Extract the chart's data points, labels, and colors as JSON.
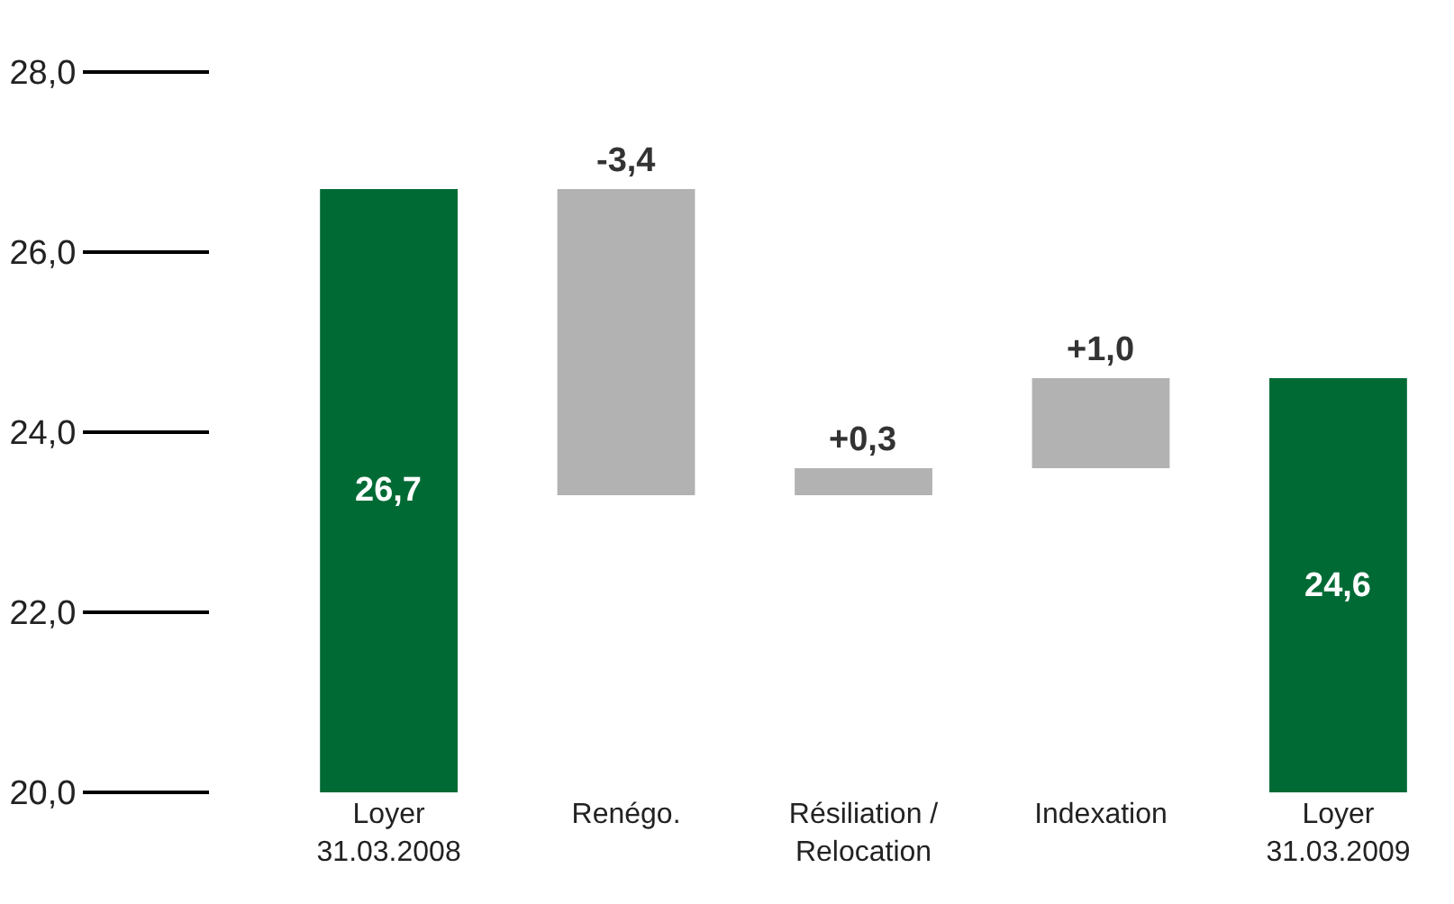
{
  "chart_data": {
    "type": "bar",
    "categories": [
      "Loyer 31.03.2008",
      "Renégo.",
      "Résiliation / Relocation",
      "Indexation",
      "Loyer 31.03.2009"
    ],
    "values": [
      6.7,
      -3.4,
      0.3,
      1.0,
      4.6
    ],
    "base": [
      20,
      26.7,
      23.3,
      23.6,
      20
    ],
    "colors": [
      "#006a35",
      "#b2b2b2",
      "#b2b2b2",
      "#b2b2b2",
      "#006a35"
    ],
    "value_labels": [
      "26,7",
      "-3,4",
      "+0,3",
      "+1,0",
      "24,6"
    ],
    "ylim": [
      20,
      28
    ],
    "yticks": [
      {
        "value": 20,
        "label": "20,0"
      },
      {
        "value": 22,
        "label": "22,0"
      },
      {
        "value": 24,
        "label": "24,0"
      },
      {
        "value": 26,
        "label": "26,0"
      },
      {
        "value": 28,
        "label": "28,0"
      }
    ]
  }
}
